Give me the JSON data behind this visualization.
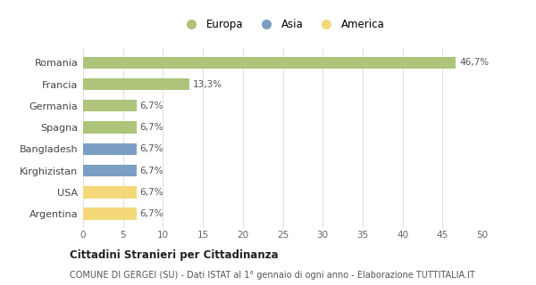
{
  "categories": [
    "Argentina",
    "USA",
    "Kirghizistan",
    "Bangladesh",
    "Spagna",
    "Germania",
    "Francia",
    "Romania"
  ],
  "values": [
    6.7,
    6.7,
    6.7,
    6.7,
    6.7,
    6.7,
    13.3,
    46.7
  ],
  "colors": [
    "#f5d87a",
    "#f5d87a",
    "#7a9fc2",
    "#7a9fc2",
    "#adc47a",
    "#adc47a",
    "#adc47a",
    "#adc47a"
  ],
  "labels": [
    "6,7%",
    "6,7%",
    "6,7%",
    "6,7%",
    "6,7%",
    "6,7%",
    "13,3%",
    "46,7%"
  ],
  "legend": [
    {
      "label": "Europa",
      "color": "#adc47a"
    },
    {
      "label": "Asia",
      "color": "#7a9fc2"
    },
    {
      "label": "America",
      "color": "#f5d87a"
    }
  ],
  "xlim": [
    0,
    50
  ],
  "xticks": [
    0,
    5,
    10,
    15,
    20,
    25,
    30,
    35,
    40,
    45,
    50
  ],
  "title": "Cittadini Stranieri per Cittadinanza",
  "subtitle": "COMUNE DI GERGEI (SU) - Dati ISTAT al 1° gennaio di ogni anno - Elaborazione TUTTITALIA.IT",
  "bg_color": "#ffffff",
  "grid_color": "#e0e0e0"
}
